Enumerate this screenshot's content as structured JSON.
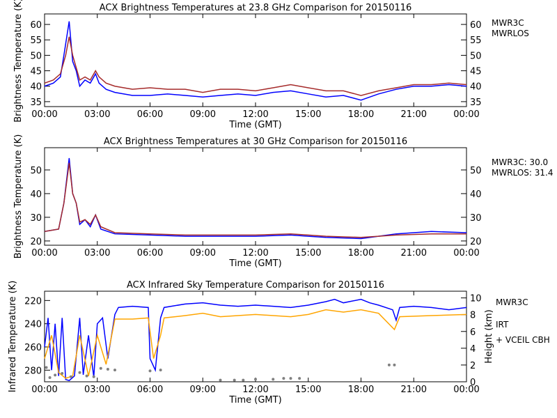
{
  "colors": {
    "mwr3c": "#0000ff",
    "mwrlos": "#a52a2a",
    "irt": "#ffa500",
    "vceil": "#808080"
  },
  "chart_data": [
    {
      "type": "line",
      "title": "ACX  Brightness Temperatures at 23.8 GHz Comparison for 20150116",
      "xlabel": "Time (GMT)",
      "ylabel": "Brightness Temperature (K)",
      "xlim": [
        0,
        24
      ],
      "ylim": [
        33.4,
        63.4
      ],
      "xticks": [
        "00:00",
        "03:00",
        "06:00",
        "09:00",
        "12:00",
        "15:00",
        "18:00",
        "21:00",
        "00:00"
      ],
      "yticks": [
        35,
        40,
        45,
        50,
        55,
        60
      ],
      "legend_position": "right",
      "series": [
        {
          "name": "MWR3C",
          "color": "#0000ff",
          "points": [
            [
              0,
              40
            ],
            [
              0.5,
              41
            ],
            [
              0.9,
              43
            ],
            [
              1.1,
              50
            ],
            [
              1.4,
              61
            ],
            [
              1.6,
              48
            ],
            [
              1.8,
              45
            ],
            [
              2,
              40
            ],
            [
              2.3,
              42
            ],
            [
              2.6,
              41
            ],
            [
              2.9,
              44
            ],
            [
              3.1,
              41
            ],
            [
              3.5,
              39
            ],
            [
              4,
              38
            ],
            [
              5,
              37
            ],
            [
              6,
              37
            ],
            [
              7,
              37.5
            ],
            [
              8,
              37
            ],
            [
              9,
              36.5
            ],
            [
              10,
              37
            ],
            [
              11,
              37.5
            ],
            [
              12,
              37
            ],
            [
              13,
              38
            ],
            [
              14,
              38.5
            ],
            [
              15,
              37.5
            ],
            [
              16,
              36.5
            ],
            [
              17,
              37
            ],
            [
              18,
              35.5
            ],
            [
              19,
              37.5
            ],
            [
              20,
              39
            ],
            [
              21,
              40
            ],
            [
              22,
              40
            ],
            [
              23,
              40.5
            ],
            [
              24,
              40
            ]
          ]
        },
        {
          "name": "MWRLOS",
          "color": "#a52a2a",
          "points": [
            [
              0,
              41
            ],
            [
              0.5,
              42
            ],
            [
              0.9,
              44
            ],
            [
              1.2,
              50
            ],
            [
              1.4,
              56
            ],
            [
              1.6,
              50
            ],
            [
              1.8,
              46
            ],
            [
              2,
              42
            ],
            [
              2.3,
              43
            ],
            [
              2.6,
              42
            ],
            [
              2.9,
              45
            ],
            [
              3.1,
              43
            ],
            [
              3.5,
              41
            ],
            [
              4,
              40
            ],
            [
              5,
              39
            ],
            [
              6,
              39.5
            ],
            [
              7,
              39
            ],
            [
              8,
              39
            ],
            [
              9,
              38
            ],
            [
              10,
              39
            ],
            [
              11,
              39
            ],
            [
              12,
              38.5
            ],
            [
              13,
              39.5
            ],
            [
              14,
              40.5
            ],
            [
              15,
              39.5
            ],
            [
              16,
              38.5
            ],
            [
              17,
              38.5
            ],
            [
              18,
              37
            ],
            [
              19,
              38.5
            ],
            [
              20,
              39.5
            ],
            [
              21,
              40.5
            ],
            [
              22,
              40.5
            ],
            [
              23,
              41
            ],
            [
              24,
              40.5
            ]
          ]
        }
      ]
    },
    {
      "type": "line",
      "title": "ACX  Brightness Temperatures at 30 GHz Comparison for 20150116",
      "xlabel": "Time (GMT)",
      "ylabel": "Brightness Temperature (K)",
      "xlim": [
        0,
        24
      ],
      "ylim": [
        18.2,
        59.4
      ],
      "xticks": [
        "00:00",
        "03:00",
        "06:00",
        "09:00",
        "12:00",
        "15:00",
        "18:00",
        "21:00",
        "00:00"
      ],
      "yticks": [
        20,
        30,
        40,
        50
      ],
      "legend_position": "right",
      "series": [
        {
          "name": "MWR3C: 30.0",
          "color": "#0000ff",
          "points": [
            [
              0,
              24
            ],
            [
              0.8,
              25
            ],
            [
              1.1,
              36
            ],
            [
              1.4,
              55
            ],
            [
              1.6,
              40
            ],
            [
              1.8,
              36
            ],
            [
              2,
              27
            ],
            [
              2.3,
              29
            ],
            [
              2.6,
              26
            ],
            [
              2.9,
              31
            ],
            [
              3.2,
              25
            ],
            [
              4,
              23
            ],
            [
              6,
              22.5
            ],
            [
              8,
              22
            ],
            [
              10,
              22
            ],
            [
              12,
              22
            ],
            [
              14,
              22.5
            ],
            [
              15,
              22
            ],
            [
              16,
              21.5
            ],
            [
              18,
              21
            ],
            [
              19,
              22
            ],
            [
              20,
              23
            ],
            [
              22,
              24
            ],
            [
              24,
              23.5
            ]
          ]
        },
        {
          "name": "MWRLOS: 31.4",
          "color": "#a52a2a",
          "points": [
            [
              0,
              24
            ],
            [
              0.8,
              25
            ],
            [
              1.1,
              36
            ],
            [
              1.4,
              53
            ],
            [
              1.6,
              40
            ],
            [
              1.8,
              36
            ],
            [
              2,
              28
            ],
            [
              2.3,
              29
            ],
            [
              2.6,
              27
            ],
            [
              2.9,
              31
            ],
            [
              3.2,
              26
            ],
            [
              4,
              23.5
            ],
            [
              6,
              23
            ],
            [
              8,
              22.5
            ],
            [
              10,
              22.5
            ],
            [
              12,
              22.5
            ],
            [
              14,
              23
            ],
            [
              15,
              22.5
            ],
            [
              16,
              22
            ],
            [
              18,
              21.5
            ],
            [
              19,
              22
            ],
            [
              20,
              22.5
            ],
            [
              22,
              23
            ],
            [
              24,
              23
            ]
          ]
        }
      ]
    },
    {
      "type": "line",
      "title": "ACX  Infrared Sky Temperature Comparison for 20150116",
      "xlabel": "Time (GMT)",
      "ylabel": "Infrared Temperature (K)",
      "y2label": "Height (km)",
      "xlim": [
        0,
        24
      ],
      "ylim": [
        290,
        212
      ],
      "y2lim": [
        0,
        10.8
      ],
      "xticks": [
        "00:00",
        "03:00",
        "06:00",
        "09:00",
        "12:00",
        "15:00",
        "18:00",
        "21:00",
        "00:00"
      ],
      "yticks": [
        220,
        240,
        260,
        280
      ],
      "y2ticks": [
        0,
        2,
        4,
        6,
        8,
        10
      ],
      "legend_position": "right",
      "series": [
        {
          "name": "MWR3C",
          "color": "#0000ff",
          "points": [
            [
              0,
              260
            ],
            [
              0.2,
              235
            ],
            [
              0.4,
              280
            ],
            [
              0.6,
              240
            ],
            [
              0.8,
              285
            ],
            [
              1,
              235
            ],
            [
              1.2,
              288
            ],
            [
              1.4,
              289
            ],
            [
              1.7,
              285
            ],
            [
              2,
              235
            ],
            [
              2.2,
              284
            ],
            [
              2.5,
              250
            ],
            [
              2.8,
              286
            ],
            [
              3,
              240
            ],
            [
              3.3,
              235
            ],
            [
              3.6,
              270
            ],
            [
              4,
              232
            ],
            [
              4.2,
              226
            ],
            [
              5,
              225
            ],
            [
              5.9,
              226
            ],
            [
              6,
              270
            ],
            [
              6.3,
              280
            ],
            [
              6.6,
              235
            ],
            [
              6.8,
              226
            ],
            [
              8,
              223
            ],
            [
              9,
              222
            ],
            [
              10,
              224
            ],
            [
              11,
              225
            ],
            [
              12,
              224
            ],
            [
              13,
              225
            ],
            [
              14,
              226
            ],
            [
              15,
              224
            ],
            [
              16,
              221
            ],
            [
              16.5,
              219
            ],
            [
              17,
              222
            ],
            [
              18,
              219
            ],
            [
              18.5,
              222
            ],
            [
              19,
              224
            ],
            [
              19.8,
              228
            ],
            [
              20,
              237
            ],
            [
              20.2,
              226
            ],
            [
              21,
              225
            ],
            [
              22,
              226
            ],
            [
              23,
              228
            ],
            [
              24,
              226
            ]
          ]
        },
        {
          "name": "IRT",
          "color": "#ffa500",
          "points": [
            [
              0,
              270
            ],
            [
              0.4,
              250
            ],
            [
              0.8,
              282
            ],
            [
              1.2,
              287
            ],
            [
              1.6,
              285
            ],
            [
              2,
              250
            ],
            [
              2.5,
              285
            ],
            [
              3,
              250
            ],
            [
              3.5,
              275
            ],
            [
              4,
              236
            ],
            [
              5,
              236
            ],
            [
              5.9,
              235
            ],
            [
              6.2,
              270
            ],
            [
              6.6,
              250
            ],
            [
              6.8,
              235
            ],
            [
              8,
              233
            ],
            [
              9,
              231
            ],
            [
              10,
              234
            ],
            [
              12,
              232
            ],
            [
              14,
              234
            ],
            [
              15,
              232
            ],
            [
              16,
              228
            ],
            [
              17,
              230
            ],
            [
              18,
              228
            ],
            [
              19,
              231
            ],
            [
              19.9,
              245
            ],
            [
              20.2,
              234
            ],
            [
              22,
              233
            ],
            [
              24,
              232
            ]
          ]
        },
        {
          "name": "+ VCEIL CBH",
          "color": "#808080",
          "axis": "y2",
          "points": [
            [
              0.1,
              1.7
            ],
            [
              0.3,
              0.5
            ],
            [
              0.6,
              0.8
            ],
            [
              1,
              1.0
            ],
            [
              1.5,
              0.6
            ],
            [
              2,
              1.1
            ],
            [
              2.4,
              0.7
            ],
            [
              2.8,
              0.6
            ],
            [
              3.2,
              1.6
            ],
            [
              3.6,
              1.5
            ],
            [
              4,
              1.4
            ],
            [
              6,
              1.3
            ],
            [
              6.6,
              1.4
            ],
            [
              10,
              0.2
            ],
            [
              10.8,
              0.2
            ],
            [
              11.3,
              0.2
            ],
            [
              12,
              0.3
            ],
            [
              13,
              0.3
            ],
            [
              13.6,
              0.4
            ],
            [
              14,
              0.4
            ],
            [
              14.5,
              0.4
            ],
            [
              19.6,
              2.0
            ],
            [
              19.9,
              2.0
            ]
          ]
        }
      ]
    }
  ]
}
